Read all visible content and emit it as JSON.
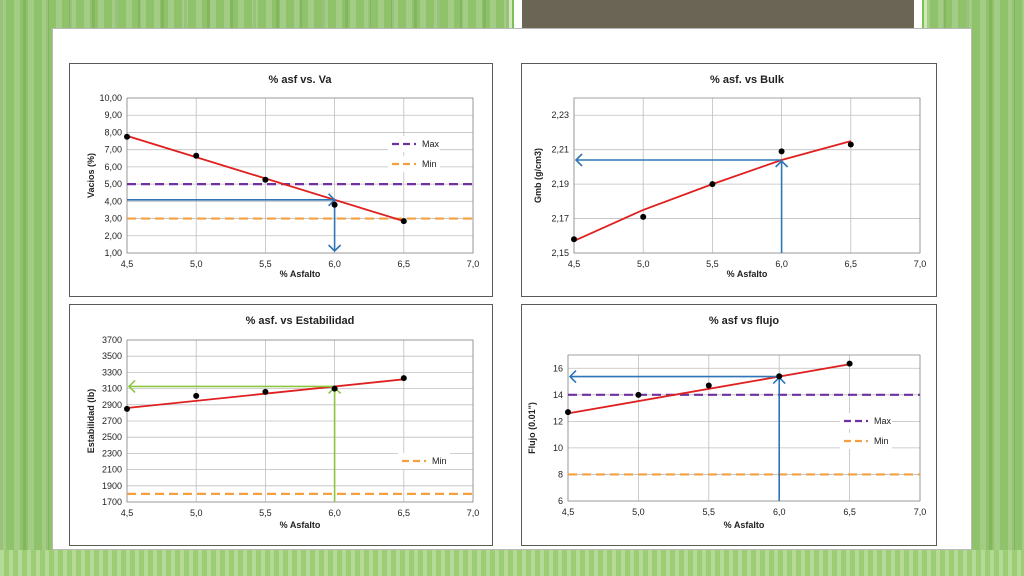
{
  "chart_data": [
    {
      "type": "line",
      "title": "% asf vs. Va",
      "xlabel": "% Asfalto",
      "ylabel": "Vacios (%)",
      "xlim": [
        4.5,
        7.0
      ],
      "ylim": [
        1.0,
        10.0
      ],
      "x_ticks": [
        "4,5",
        "5,0",
        "5,5",
        "6,0",
        "6,5",
        "7,0"
      ],
      "y_ticks": [
        "1,00",
        "2,00",
        "3,00",
        "4,00",
        "5,00",
        "6,00",
        "7,00",
        "8,00",
        "9,00",
        "10,00"
      ],
      "grid": true,
      "points": {
        "x": [
          4.5,
          5.0,
          5.5,
          6.0,
          6.5
        ],
        "y": [
          7.75,
          6.65,
          5.25,
          3.8,
          2.85
        ]
      },
      "trend": {
        "x": [
          4.5,
          6.5
        ],
        "y": [
          7.8,
          2.85
        ],
        "color": "#e02020"
      },
      "hlines": [
        {
          "name": "Max",
          "y": 5.0,
          "color": "#7030a0"
        },
        {
          "name": "Min",
          "y": 3.0,
          "color": "#f5a040"
        }
      ],
      "arrow_color": "#2e75b6",
      "legend": "right"
    },
    {
      "type": "line",
      "title": "% asf. vs Bulk",
      "xlabel": "% Asfalto",
      "ylabel": "Gmb (g/cm3)",
      "xlim": [
        4.5,
        7.0
      ],
      "ylim": [
        2.15,
        2.24
      ],
      "x_ticks": [
        "4,5",
        "5,0",
        "5,5",
        "6,0",
        "6,5",
        "7,0"
      ],
      "y_ticks": [
        "2,15",
        "2,17",
        "2,19",
        "2,21",
        "2,23"
      ],
      "grid": true,
      "points": {
        "x": [
          4.5,
          5.0,
          5.5,
          6.0,
          6.5
        ],
        "y": [
          2.158,
          2.171,
          2.19,
          2.209,
          2.213
        ]
      },
      "trend": {
        "x": [
          4.5,
          5.0,
          5.5,
          6.0,
          6.5
        ],
        "y": [
          2.157,
          2.175,
          2.19,
          2.204,
          2.215
        ],
        "color": "#e02020"
      },
      "hlines": [],
      "arrow_color": "#2e75b6"
    },
    {
      "type": "line",
      "title": "% asf. vs Estabilidad",
      "xlabel": "% Asfalto",
      "ylabel": "Estabilidad (lb)",
      "xlim": [
        4.5,
        7.0
      ],
      "ylim": [
        1700,
        3700
      ],
      "x_ticks": [
        "4,5",
        "5,0",
        "5,5",
        "6,0",
        "6,5",
        "7,0"
      ],
      "y_ticks": [
        "1700",
        "1900",
        "2100",
        "2300",
        "2500",
        "2700",
        "2900",
        "3100",
        "3300",
        "3500",
        "3700"
      ],
      "grid": true,
      "points": {
        "x": [
          4.5,
          5.0,
          5.5,
          6.0,
          6.5
        ],
        "y": [
          2850,
          3010,
          3060,
          3100,
          3230
        ]
      },
      "trend": {
        "x": [
          4.5,
          6.5
        ],
        "y": [
          2860,
          3215
        ],
        "color": "#e02020"
      },
      "hlines": [
        {
          "name": "Min",
          "y": 1800,
          "color": "#f5a040"
        }
      ],
      "arrow_color": "#8cc63f",
      "legend": "right"
    },
    {
      "type": "line",
      "title": "% asf vs flujo",
      "xlabel": "% Asfalto",
      "ylabel": "Flujo (0.01\")",
      "xlim": [
        4.5,
        7.0
      ],
      "ylim": [
        6,
        17
      ],
      "x_ticks": [
        "4,5",
        "5,0",
        "5,5",
        "6,0",
        "6,5",
        "7,0"
      ],
      "y_ticks": [
        "6",
        "8",
        "10",
        "12",
        "14",
        "16"
      ],
      "grid": true,
      "points": {
        "x": [
          4.5,
          5.0,
          5.5,
          6.0,
          6.5
        ],
        "y": [
          12.7,
          14.0,
          14.7,
          15.4,
          16.35
        ]
      },
      "trend": {
        "x": [
          4.5,
          6.5
        ],
        "y": [
          12.6,
          16.3
        ],
        "color": "#e02020"
      },
      "hlines": [
        {
          "name": "Max",
          "y": 14.0,
          "color": "#7030a0"
        },
        {
          "name": "Min",
          "y": 8.0,
          "color": "#f5a040"
        }
      ],
      "arrow_color": "#2e75b6",
      "legend": "right"
    }
  ]
}
